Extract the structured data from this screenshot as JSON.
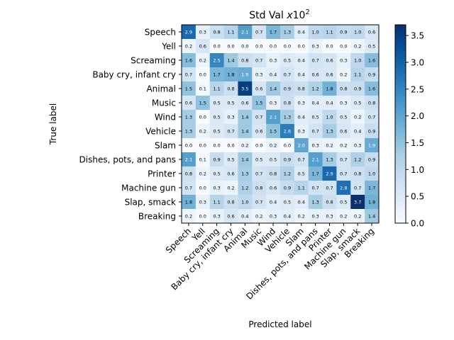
{
  "chart_data": {
    "type": "heatmap",
    "title_base": "Std Val ",
    "title_italic": "x",
    "title_mid": "10",
    "title_exp": "2",
    "xlabel": "Predicted label",
    "ylabel": "True label",
    "labels": [
      "Speech",
      "Yell",
      "Screaming",
      "Baby cry, infant cry",
      "Animal",
      "Music",
      "Wind",
      "Vehicle",
      "Slam",
      "Dishes, pots, and pans",
      "Printer",
      "Machine gun",
      "Slap, smack",
      "Breaking"
    ],
    "values": [
      [
        2.9,
        0.3,
        0.8,
        1.1,
        2.1,
        0.7,
        1.7,
        1.3,
        0.4,
        1.0,
        1.1,
        0.9,
        1.0,
        0.6
      ],
      [
        0.2,
        0.6,
        0.0,
        0.0,
        0.0,
        0.0,
        0.0,
        0.0,
        0.0,
        0.3,
        0.0,
        0.0,
        0.2,
        0.5
      ],
      [
        1.6,
        0.2,
        2.5,
        1.4,
        0.8,
        0.7,
        0.3,
        0.5,
        0.4,
        0.7,
        0.6,
        0.3,
        1.0,
        1.6
      ],
      [
        0.7,
        0.0,
        1.7,
        1.8,
        1.9,
        0.3,
        0.4,
        0.7,
        0.4,
        0.6,
        0.6,
        0.2,
        1.1,
        0.9
      ],
      [
        1.5,
        0.1,
        1.1,
        0.8,
        3.5,
        0.6,
        1.4,
        0.9,
        0.8,
        1.2,
        1.8,
        0.8,
        0.9,
        1.6
      ],
      [
        0.6,
        1.5,
        0.5,
        0.5,
        0.6,
        1.5,
        0.3,
        0.8,
        0.3,
        0.4,
        0.4,
        0.3,
        0.5,
        0.8
      ],
      [
        1.3,
        0.0,
        0.5,
        0.3,
        1.4,
        0.7,
        2.1,
        1.3,
        0.4,
        0.5,
        1.0,
        0.5,
        0.2,
        0.7
      ],
      [
        1.3,
        0.2,
        0.5,
        0.7,
        1.4,
        0.6,
        1.5,
        2.6,
        0.3,
        0.7,
        1.3,
        0.6,
        0.4,
        0.9
      ],
      [
        0.0,
        0.0,
        0.0,
        0.0,
        0.2,
        0.0,
        0.2,
        0.0,
        2.0,
        0.3,
        0.2,
        0.2,
        0.3,
        1.9
      ],
      [
        2.1,
        0.1,
        0.9,
        0.5,
        1.4,
        0.5,
        0.5,
        0.9,
        0.7,
        2.1,
        1.3,
        0.7,
        1.2,
        0.9
      ],
      [
        0.8,
        0.2,
        0.5,
        0.6,
        1.3,
        0.7,
        0.8,
        1.2,
        0.5,
        1.7,
        2.9,
        0.7,
        0.8,
        1.0
      ],
      [
        0.7,
        0.0,
        0.3,
        0.2,
        1.2,
        0.8,
        0.6,
        0.9,
        1.1,
        0.7,
        0.7,
        2.8,
        0.7,
        1.7
      ],
      [
        1.8,
        0.3,
        1.1,
        0.8,
        1.0,
        0.7,
        0.4,
        0.5,
        0.4,
        1.3,
        0.8,
        0.5,
        3.7,
        1.8
      ],
      [
        0.2,
        0.0,
        0.3,
        0.6,
        0.4,
        0.2,
        0.3,
        0.4,
        0.2,
        0.3,
        0.3,
        0.2,
        0.2,
        1.4
      ]
    ],
    "color_range": [
      0.0,
      3.7
    ],
    "colorbar_ticks": [
      0.0,
      0.5,
      1.0,
      1.5,
      2.0,
      2.5,
      3.0,
      3.5
    ],
    "colormap": "Blues",
    "value_format": "0.0"
  }
}
